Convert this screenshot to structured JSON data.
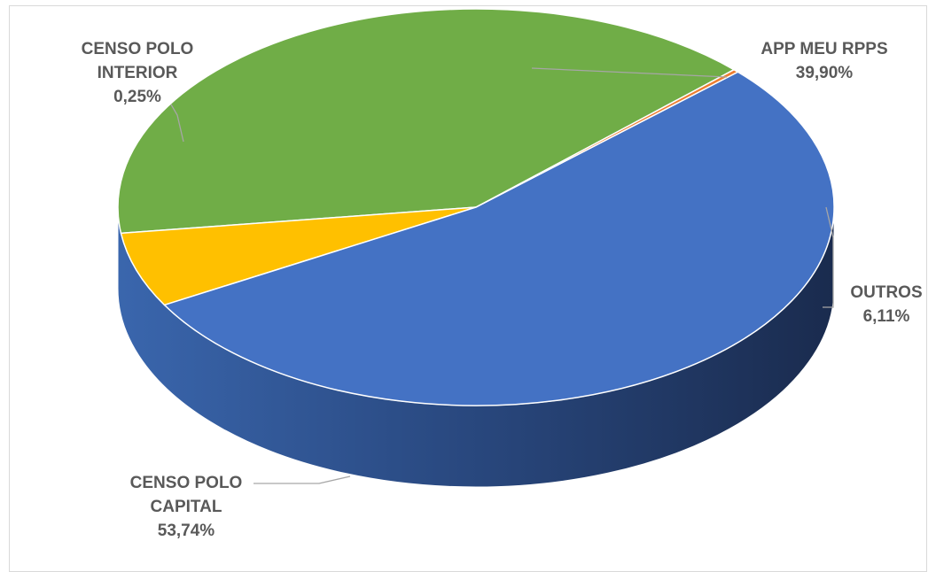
{
  "chart_data": {
    "type": "pie",
    "style": "3d",
    "title": "",
    "slices": [
      {
        "label_lines": [
          "APP MEU RPPS"
        ],
        "value_text": "39,90%",
        "value": 39.9,
        "color": "#70ad47"
      },
      {
        "label_lines": [
          "OUTROS"
        ],
        "value_text": "6,11%",
        "value": 6.11,
        "color": "#ffc000"
      },
      {
        "label_lines": [
          "CENSO POLO",
          "CAPITAL"
        ],
        "value_text": "53,74%",
        "value": 53.74,
        "color": "#4472c4"
      },
      {
        "label_lines": [
          "CENSO POLO",
          "INTERIOR"
        ],
        "value_text": "0,25%",
        "value": 0.25,
        "color": "#ed7d31"
      }
    ],
    "legend": "none",
    "data_labels": "outside-with-leader-lines"
  }
}
